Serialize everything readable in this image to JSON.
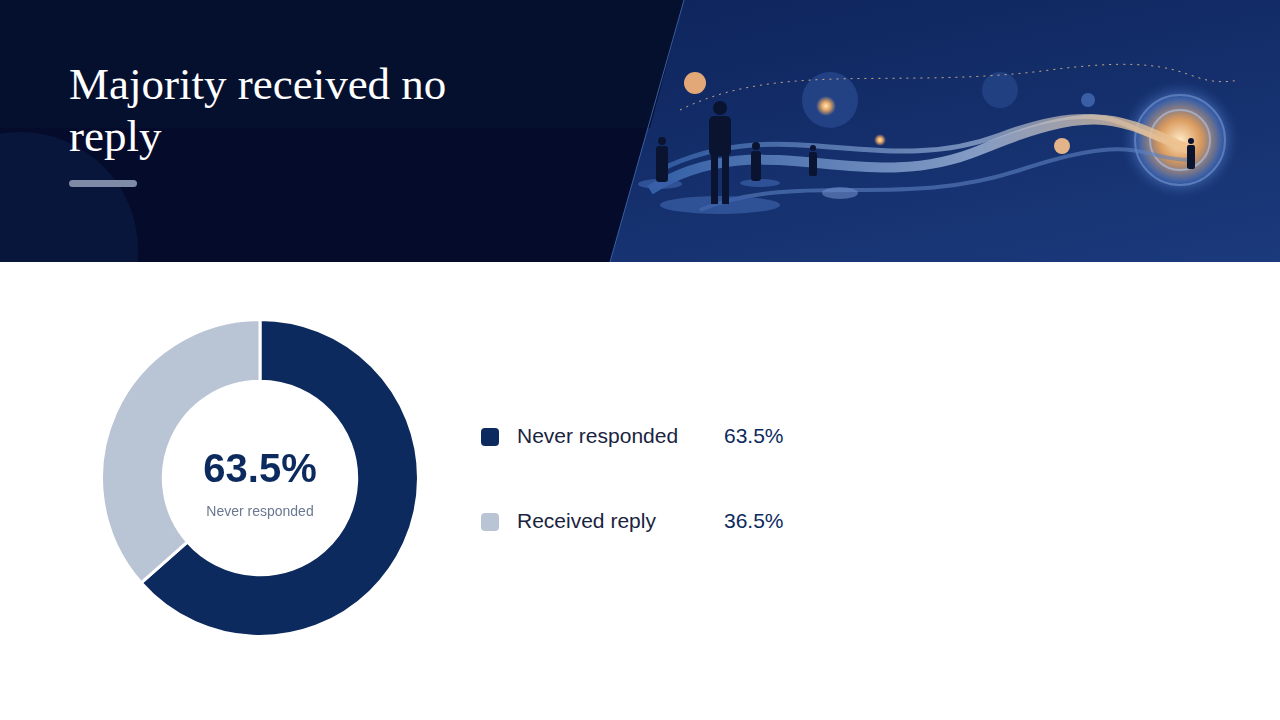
{
  "chart_data": {
    "type": "doughnut",
    "title": "Majority received no reply",
    "categories": [
      "Never responded",
      "Received reply"
    ],
    "values": [
      63.5,
      36.5
    ],
    "value_labels": [
      "63.5%",
      "36.5%"
    ],
    "colors": [
      "#0d2a5e",
      "#b9c4d5"
    ],
    "legend": "right"
  }
}
